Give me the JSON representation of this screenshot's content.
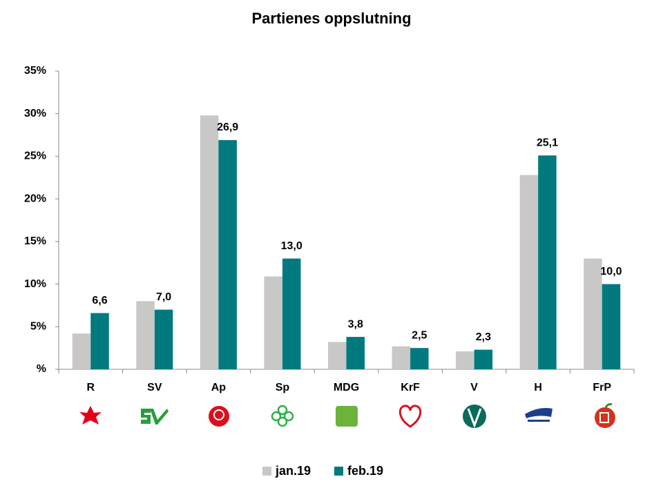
{
  "chart_data": {
    "type": "bar",
    "title": "Partienes oppslutning",
    "categories": [
      "R",
      "SV",
      "Ap",
      "Sp",
      "MDG",
      "KrF",
      "V",
      "H",
      "FrP"
    ],
    "series": [
      {
        "name": "jan.19",
        "color": "#c8c8c6",
        "values": [
          4.2,
          8.0,
          29.8,
          10.9,
          3.2,
          2.7,
          2.1,
          22.8,
          13.0
        ]
      },
      {
        "name": "feb.19",
        "color": "#007a7e",
        "values": [
          6.6,
          7.0,
          26.9,
          13.0,
          3.8,
          2.5,
          2.3,
          25.1,
          10.0
        ],
        "value_labels": [
          "6,6",
          "7,0",
          "26,9",
          "13,0",
          "3,8",
          "2,5",
          "2,3",
          "25,1",
          "10,0"
        ]
      }
    ],
    "ylim": [
      0,
      35
    ],
    "yticks": [
      {
        "value": 0,
        "label": "%"
      },
      {
        "value": 5,
        "label": "5%"
      },
      {
        "value": 10,
        "label": "10%"
      },
      {
        "value": 15,
        "label": "15%"
      },
      {
        "value": 20,
        "label": "20%"
      },
      {
        "value": 25,
        "label": "25%"
      },
      {
        "value": 30,
        "label": "30%"
      },
      {
        "value": 35,
        "label": "35%"
      }
    ],
    "grid": false,
    "legend": "bottom"
  }
}
